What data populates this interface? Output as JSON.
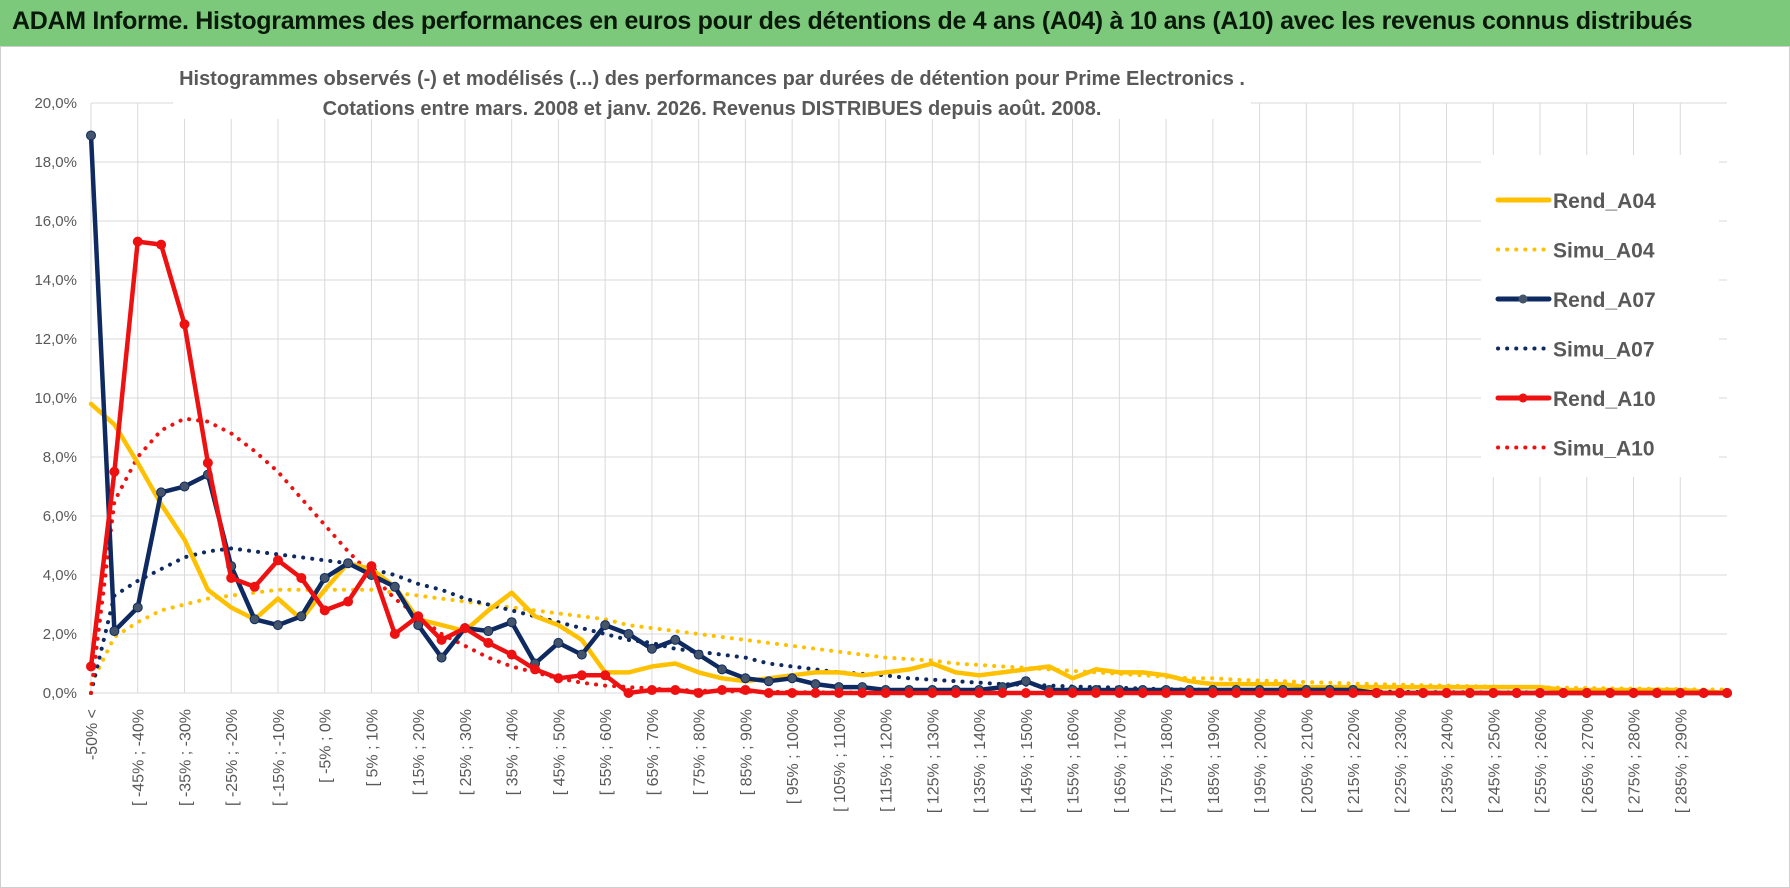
{
  "banner": {
    "title": "ADAM Informe. Histogrammes des performances en euros pour des détentions de 4 ans (A04) à 10 ans (A10) avec les revenus connus distribués"
  },
  "colors": {
    "banner_bg": "#7cc97c",
    "yellow": "#ffc000",
    "navy": "#0f2a60",
    "red": "#ee1111",
    "grid": "#d9d9d9",
    "text": "#595959"
  },
  "chart_data": {
    "type": "line",
    "title_lines": [
      "Histogrammes observés (-) et modélisés (...) des performances par durées de détention pour Prime Electronics .",
      "Cotations entre mars. 2008 et janv. 2026.  Revenus DISTRIBUES depuis août. 2008."
    ],
    "y_ticks": [
      "0,0%",
      "2,0%",
      "4,0%",
      "6,0%",
      "8,0%",
      "10,0%",
      "12,0%",
      "14,0%",
      "16,0%",
      "18,0%",
      "20,0%"
    ],
    "ylim": [
      0,
      20
    ],
    "x_tick_labels": [
      "-50% <",
      "[ -45% ; -40%",
      "[ -35% ; -30%",
      "[ -25% ; -20%",
      "[ -15% ; -10%",
      "[ -5% ; 0%",
      "[ 5% ; 10%",
      "[ 15% ; 20%",
      "[ 25% ; 30%",
      "[ 35% ; 40%",
      "[ 45% ; 50%",
      "[ 55% ; 60%",
      "[ 65% ; 70%",
      "[ 75% ; 80%",
      "[ 85% ; 90%",
      "[ 95% ; 100%",
      "[ 105% ; 110%",
      "[ 115% ; 120%",
      "[ 125% ; 130%",
      "[ 135% ; 140%",
      "[ 145% ; 150%",
      "[ 155% ; 160%",
      "[ 165% ; 170%",
      "[ 175% ; 180%",
      "[ 185% ; 190%",
      "[ 195% ; 200%",
      "[ 205% ; 210%",
      "[ 215% ; 220%",
      "[ 225% ; 230%",
      "[ 235% ; 240%",
      "[ 245% ; 250%",
      "[ 255% ; 260%",
      "[ 265% ; 270%",
      "[ 275% ; 280%",
      "[ 285% ; 290%"
    ],
    "n_bins": 71,
    "series": [
      {
        "name": "Rend_A04",
        "color": "#ffc000",
        "style": "solid",
        "markers": false,
        "values": [
          9.8,
          9.1,
          7.8,
          6.4,
          5.2,
          3.5,
          2.9,
          2.5,
          3.2,
          2.5,
          3.5,
          4.4,
          4.2,
          3.6,
          2.5,
          2.3,
          2.1,
          2.8,
          3.4,
          2.6,
          2.3,
          1.8,
          0.7,
          0.7,
          0.9,
          1.0,
          0.7,
          0.5,
          0.4,
          0.5,
          0.6,
          0.7,
          0.7,
          0.6,
          0.7,
          0.8,
          1.0,
          0.7,
          0.6,
          0.7,
          0.8,
          0.9,
          0.5,
          0.8,
          0.7,
          0.7,
          0.6,
          0.4,
          0.3,
          0.3,
          0.3,
          0.3,
          0.2,
          0.2,
          0.2,
          0.2,
          0.2,
          0.2,
          0.2,
          0.2,
          0.2,
          0.2,
          0.2,
          0.1,
          0.1,
          0.1,
          0.1,
          0.1,
          0.1,
          0.05,
          0.0
        ]
      },
      {
        "name": "Simu_A04",
        "color": "#ffc000",
        "style": "dotted",
        "markers": false,
        "values": [
          0.3,
          1.9,
          2.4,
          2.8,
          3.0,
          3.2,
          3.3,
          3.4,
          3.5,
          3.5,
          3.5,
          3.5,
          3.5,
          3.4,
          3.3,
          3.2,
          3.1,
          3.0,
          2.9,
          2.8,
          2.7,
          2.6,
          2.5,
          2.3,
          2.2,
          2.1,
          2.0,
          1.9,
          1.8,
          1.7,
          1.6,
          1.5,
          1.4,
          1.3,
          1.2,
          1.15,
          1.1,
          1.0,
          0.95,
          0.9,
          0.85,
          0.8,
          0.75,
          0.7,
          0.65,
          0.6,
          0.55,
          0.5,
          0.5,
          0.45,
          0.42,
          0.4,
          0.37,
          0.35,
          0.32,
          0.3,
          0.28,
          0.26,
          0.25,
          0.23,
          0.22,
          0.2,
          0.19,
          0.18,
          0.17,
          0.16,
          0.15,
          0.14,
          0.13,
          0.12,
          0.12
        ]
      },
      {
        "name": "Rend_A07",
        "color": "#0f2a60",
        "style": "solid",
        "markers": true,
        "values": [
          18.9,
          2.1,
          2.9,
          6.8,
          7.0,
          7.4,
          4.3,
          2.5,
          2.3,
          2.6,
          3.9,
          4.4,
          4.0,
          3.6,
          2.3,
          1.2,
          2.2,
          2.1,
          2.4,
          1.0,
          1.7,
          1.3,
          2.3,
          2.0,
          1.5,
          1.8,
          1.3,
          0.8,
          0.5,
          0.4,
          0.5,
          0.3,
          0.2,
          0.2,
          0.1,
          0.1,
          0.1,
          0.1,
          0.1,
          0.2,
          0.4,
          0.1,
          0.1,
          0.1,
          0.1,
          0.1,
          0.1,
          0.1,
          0.1,
          0.1,
          0.1,
          0.1,
          0.1,
          0.1,
          0.1,
          0.0,
          0.0,
          0.0,
          0.0,
          0.0,
          0.0,
          0.0,
          0.0,
          0.0,
          0.0,
          0.0,
          0.0,
          0.0,
          0.0,
          0.0,
          0.0
        ]
      },
      {
        "name": "Simu_A07",
        "color": "#0f2a60",
        "style": "dotted",
        "markers": false,
        "values": [
          0.0,
          3.3,
          3.8,
          4.2,
          4.6,
          4.8,
          4.9,
          4.8,
          4.7,
          4.6,
          4.5,
          4.4,
          4.2,
          4.0,
          3.7,
          3.5,
          3.2,
          3.0,
          2.8,
          2.6,
          2.4,
          2.2,
          2.0,
          1.8,
          1.7,
          1.5,
          1.4,
          1.3,
          1.2,
          1.0,
          0.9,
          0.8,
          0.7,
          0.65,
          0.6,
          0.5,
          0.45,
          0.4,
          0.35,
          0.3,
          0.28,
          0.25,
          0.22,
          0.2,
          0.18,
          0.15,
          0.13,
          0.12,
          0.1,
          0.09,
          0.08,
          0.07,
          0.06,
          0.05,
          0.05,
          0.04,
          0.04,
          0.03,
          0.03,
          0.02,
          0.02,
          0.02,
          0.02,
          0.01,
          0.01,
          0.01,
          0.01,
          0.01,
          0.01,
          0.01,
          0.01
        ]
      },
      {
        "name": "Rend_A10",
        "color": "#ee1111",
        "style": "solid",
        "markers": true,
        "values": [
          0.9,
          7.5,
          15.3,
          15.2,
          12.5,
          7.8,
          3.9,
          3.6,
          4.5,
          3.9,
          2.8,
          3.1,
          4.3,
          2.0,
          2.6,
          1.8,
          2.2,
          1.7,
          1.3,
          0.8,
          0.5,
          0.6,
          0.6,
          0.0,
          0.1,
          0.1,
          0.0,
          0.1,
          0.1,
          0.0,
          0.0,
          0.0,
          0.0,
          0.0,
          0.0,
          0.0,
          0.0,
          0.0,
          0.0,
          0.0,
          0.0,
          0.0,
          0.0,
          0.0,
          0.0,
          0.0,
          0.0,
          0.0,
          0.0,
          0.0,
          0.0,
          0.0,
          0.0,
          0.0,
          0.0,
          0.0,
          0.0,
          0.0,
          0.0,
          0.0,
          0.0,
          0.0,
          0.0,
          0.0,
          0.0,
          0.0,
          0.0,
          0.0,
          0.0,
          0.0,
          0.0
        ]
      },
      {
        "name": "Simu_A10",
        "color": "#ee1111",
        "style": "dotted",
        "markers": false,
        "values": [
          0.0,
          6.5,
          8.0,
          8.9,
          9.3,
          9.2,
          8.8,
          8.2,
          7.5,
          6.6,
          5.7,
          4.8,
          4.0,
          3.2,
          2.6,
          2.0,
          1.6,
          1.2,
          0.9,
          0.7,
          0.5,
          0.35,
          0.25,
          0.2,
          0.15,
          0.1,
          0.08,
          0.06,
          0.05,
          0.04,
          0.03,
          0.02,
          0.02,
          0.01,
          0.01,
          0.01,
          0.0,
          0.0,
          0.0,
          0.0,
          0.0,
          0.0,
          0.0,
          0.0,
          0.0,
          0.0,
          0.0,
          0.0,
          0.0,
          0.0,
          0.0,
          0.0,
          0.0,
          0.0,
          0.0,
          0.0,
          0.0,
          0.0,
          0.0,
          0.0,
          0.0,
          0.0,
          0.0,
          0.0,
          0.0,
          0.0,
          0.0,
          0.0,
          0.0,
          0.0,
          0.0
        ]
      }
    ],
    "legend": [
      "Rend_A04",
      "Simu_A04",
      "Rend_A07",
      "Simu_A07",
      "Rend_A10",
      "Simu_A10"
    ],
    "legend_position": "top-right",
    "grid": true
  }
}
